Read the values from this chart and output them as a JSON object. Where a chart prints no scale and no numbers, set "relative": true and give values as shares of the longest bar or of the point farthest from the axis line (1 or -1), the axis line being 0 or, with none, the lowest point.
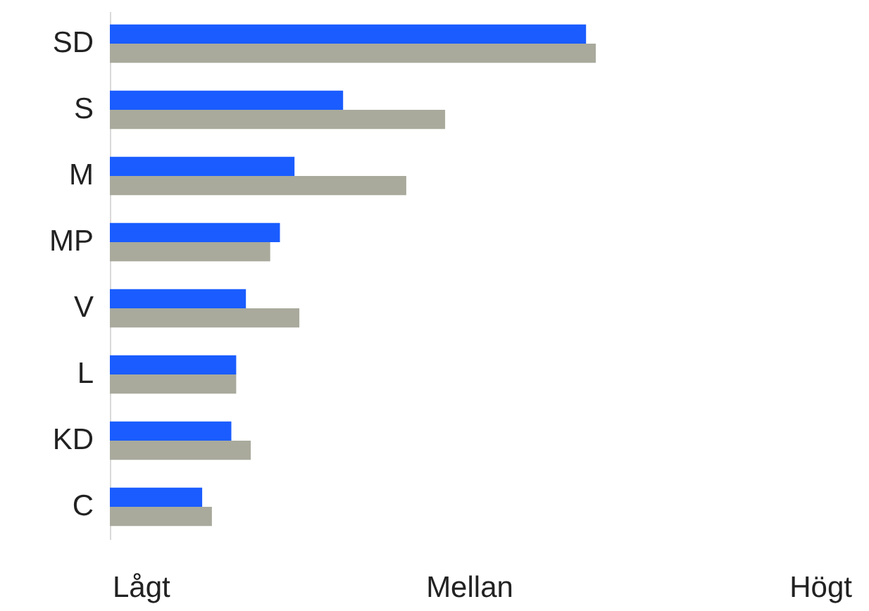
{
  "chart_data": {
    "type": "bar",
    "orientation": "horizontal",
    "relative": true,
    "categories": [
      "SD",
      "S",
      "M",
      "MP",
      "V",
      "L",
      "KD",
      "C"
    ],
    "series": [
      {
        "color": "#1a5cff",
        "values": [
          0.98,
          0.48,
          0.38,
          0.35,
          0.28,
          0.26,
          0.25,
          0.19
        ]
      },
      {
        "color": "#a9aa9c",
        "values": [
          1,
          0.69,
          0.61,
          0.33,
          0.39,
          0.26,
          0.29,
          0.21
        ]
      }
    ],
    "annotations": [
      "Lågt",
      "Mellan",
      "Högt"
    ],
    "grid": false
  }
}
